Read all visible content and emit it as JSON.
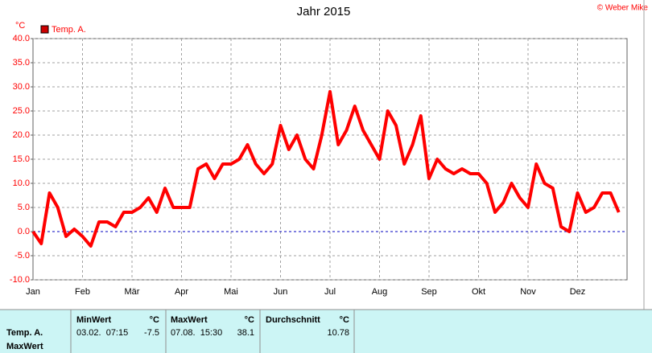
{
  "chart_data": {
    "type": "line",
    "title": "Jahr 2015",
    "y_label": "°C",
    "credit": "© Weber Mike",
    "categories": [
      "Jan",
      null,
      null,
      null,
      null,
      null,
      "Feb",
      null,
      null,
      null,
      null,
      null,
      "Mär",
      null,
      null,
      null,
      null,
      null,
      "Apr",
      null,
      null,
      null,
      null,
      null,
      "Mai",
      null,
      null,
      null,
      null,
      null,
      "Jun",
      null,
      null,
      null,
      null,
      null,
      "Jul",
      null,
      null,
      null,
      null,
      null,
      "Aug",
      null,
      null,
      null,
      null,
      null,
      "Sep",
      null,
      null,
      null,
      null,
      null,
      "Okt",
      null,
      null,
      null,
      null,
      null,
      "Nov",
      null,
      null,
      null,
      null,
      null,
      "Dez",
      null,
      null,
      null,
      null,
      null
    ],
    "series": [
      {
        "name": "Temp. A.",
        "color": "#ff0000",
        "values": [
          0,
          -2.5,
          8,
          5,
          -1,
          0.5,
          -1,
          -3,
          2,
          2,
          1,
          4,
          4,
          5,
          7,
          4,
          9,
          5,
          5,
          5,
          13,
          14,
          11,
          14,
          14,
          15,
          18,
          14,
          12,
          14,
          22,
          17,
          20,
          15,
          13,
          20,
          29,
          18,
          21,
          26,
          21,
          18,
          15,
          25,
          22,
          14,
          18,
          24,
          11,
          15,
          13,
          12,
          13,
          12,
          12,
          10,
          4,
          6,
          10,
          7,
          5,
          14,
          10,
          9,
          1,
          0,
          8,
          4,
          5,
          8,
          8,
          4
        ]
      }
    ],
    "ylim": [
      -10,
      40
    ],
    "yticks": [
      {
        "value": -10,
        "label": "-10.0"
      },
      {
        "value": -5,
        "label": "-5.0"
      },
      {
        "value": 0,
        "label": "0.0"
      },
      {
        "value": 5,
        "label": "5.0"
      },
      {
        "value": 10,
        "label": "10.0"
      },
      {
        "value": 15,
        "label": "15.0"
      },
      {
        "value": 20,
        "label": "20.0"
      },
      {
        "value": 25,
        "label": "25.0"
      },
      {
        "value": 30,
        "label": "30.0"
      },
      {
        "value": 35,
        "label": "35.0"
      },
      {
        "value": 40,
        "label": "40.0"
      }
    ],
    "grid": true
  },
  "summary": {
    "row_labels": [
      "Temp. A.",
      "MaxWert"
    ],
    "min": {
      "header": "MinWert",
      "unit": "°C",
      "time": "03.02.  07:15",
      "value": -7.5
    },
    "max": {
      "header": "MaxWert",
      "unit": "°C",
      "time": "07.08.  15:30",
      "value": 38.1
    },
    "avg": {
      "header": "Durchschnitt",
      "unit": "°C",
      "value": 10.78
    }
  }
}
